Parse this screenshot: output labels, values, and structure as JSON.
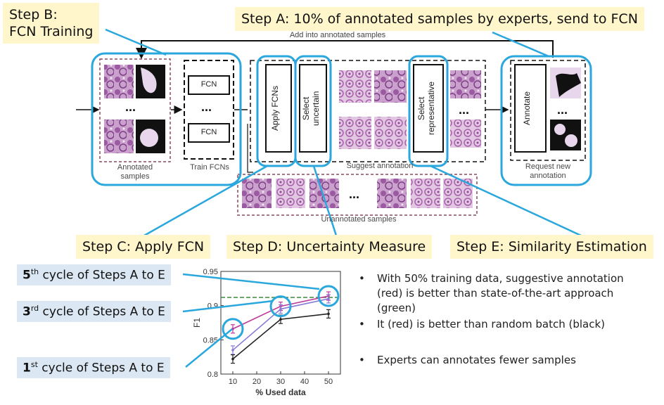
{
  "callouts": {
    "step_b": "Step B:\nFCN Training",
    "step_a": "Step A: 10% of annotated samples by experts, send to FCN",
    "step_c": "Step C: Apply FCN",
    "step_d": "Step D: Uncertainty Measure",
    "step_e": "Step E: Similarity Estimation"
  },
  "diagram": {
    "loop_label": "Add into annotated samples",
    "annotated_samples": "Annotated\nsamples",
    "train_fcns": "Train FCNs",
    "fcn_box": "FCN",
    "apply_fcns": "Apply FCNs",
    "select_uncertain": "Select\nuncertain",
    "select_representative": "Select\nrepresentative",
    "suggest_annotation": "Suggest annotation",
    "annotate": "Annotate",
    "request_new_annotation": "Request new\nannotation",
    "unannotated_samples": "Unannotated samples",
    "ellipsis": "..."
  },
  "cycles": [
    {
      "ord": "5",
      "sup": "th",
      "text": " cycle of Steps A to E"
    },
    {
      "ord": "3",
      "sup": "rd",
      "text": " cycle of Steps A to E"
    },
    {
      "ord": "1",
      "sup": "st",
      "text": " cycle of Steps A to E"
    }
  ],
  "bullets": [
    "With 50% training data, suggestive annotation (red) is better than state-of-the-art approach (green)",
    "It (red) is better than random batch (black)",
    "Experts can annotates fewer samples"
  ],
  "chart_data": {
    "type": "line",
    "xlabel": "% Used data",
    "ylabel": "F1",
    "x": [
      10,
      20,
      30,
      40,
      50
    ],
    "xlim": [
      5,
      55
    ],
    "ylim": [
      0.8,
      0.95
    ],
    "xticks": [
      "10",
      "20",
      "30",
      "40",
      "50"
    ],
    "yticks": [
      "0.8",
      "0.85",
      "0.9",
      "0.95"
    ],
    "reference_line_y": 0.912,
    "reference_line_color": "#3c8c3c",
    "series": [
      {
        "color": "#c0399a",
        "x": [
          10,
          30,
          50
        ],
        "values": [
          0.866,
          0.899,
          0.914
        ]
      },
      {
        "color": "#8a7ad8",
        "x": [
          10,
          30,
          50
        ],
        "values": [
          0.835,
          0.895,
          0.91
        ]
      },
      {
        "color": "#222222",
        "x": [
          10,
          30,
          50
        ],
        "values": [
          0.822,
          0.88,
          0.888
        ]
      }
    ]
  },
  "colors": {
    "highlight_blue": "#2aa7dc",
    "callout_yellow": "#fff6cc",
    "cycle_blue": "#dbe7f3",
    "tissue_purple": "#b57ab6"
  }
}
